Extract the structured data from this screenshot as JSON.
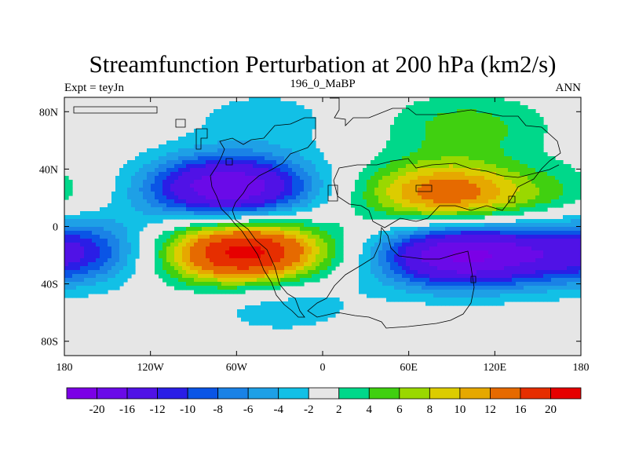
{
  "chart_data": {
    "type": "heatmap",
    "title": "Streamfunction Perturbation at 200 hPa (km2/s)",
    "left_string": "Expt = teyJn",
    "center_string": "196_0_MaBP",
    "right_string": "ANN",
    "x_ticks": [
      {
        "value": -180,
        "label": "180"
      },
      {
        "value": -120,
        "label": "120W"
      },
      {
        "value": -60,
        "label": "60W"
      },
      {
        "value": 0,
        "label": "0"
      },
      {
        "value": 60,
        "label": "60E"
      },
      {
        "value": 120,
        "label": "120E"
      },
      {
        "value": 180,
        "label": "180"
      }
    ],
    "y_ticks": [
      {
        "value": 80,
        "label": "80N"
      },
      {
        "value": 40,
        "label": "40N"
      },
      {
        "value": 0,
        "label": "0"
      },
      {
        "value": -40,
        "label": "40S"
      },
      {
        "value": -80,
        "label": "80S"
      }
    ],
    "xlim": [
      -180,
      180
    ],
    "ylim": [
      -90,
      90
    ],
    "missing_color": "#e6e6e6",
    "levels": [
      "-20",
      "-16",
      "-12",
      "-10",
      "-8",
      "-6",
      "-4",
      "-2",
      "2",
      "4",
      "6",
      "8",
      "10",
      "12",
      "16",
      "20"
    ],
    "colors": [
      "#7b00e6",
      "#6a0ae8",
      "#5012e6",
      "#2a1ee6",
      "#0a55e6",
      "#1a82e6",
      "#1ea0e6",
      "#12c0e6",
      "#e6e6e6",
      "#00d88a",
      "#40d010",
      "#9ad800",
      "#dccc00",
      "#e6a800",
      "#e66a00",
      "#e62e00",
      "#e60000"
    ],
    "anomalies": [
      {
        "lon": -65,
        "lat": 27,
        "value": -20
      },
      {
        "lon": -170,
        "lat": 15,
        "value": -6
      },
      {
        "lon": -55,
        "lat": -18,
        "value": 22
      },
      {
        "lon": -178,
        "lat": -18,
        "value": -12
      },
      {
        "lon": 85,
        "lat": 23,
        "value": 14
      },
      {
        "lon": 178,
        "lat": 18,
        "value": 8
      },
      {
        "lon": 95,
        "lat": -20,
        "value": -20
      },
      {
        "lon": -30,
        "lat": -52,
        "value": -4
      },
      {
        "lon": 100,
        "lat": 70,
        "value": 5
      },
      {
        "lon": -40,
        "lat": 75,
        "value": -3
      }
    ]
  }
}
